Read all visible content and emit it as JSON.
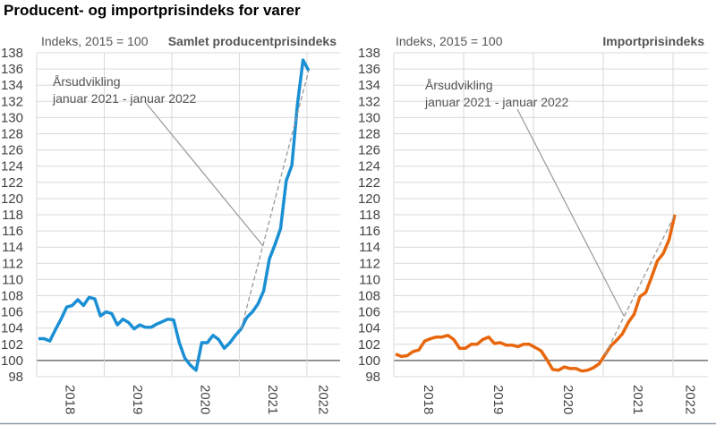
{
  "title": "Producent- og importprisindeks for varer",
  "chart_data": [
    {
      "type": "line",
      "title": "Samlet producentprisindeks",
      "ylabel": "Indeks, 2015 = 100",
      "ylim": [
        98,
        138
      ],
      "yticks": [
        98,
        100,
        102,
        104,
        106,
        108,
        110,
        112,
        114,
        116,
        118,
        120,
        122,
        124,
        126,
        128,
        130,
        132,
        134,
        136,
        138
      ],
      "x_tick_labels": [
        "2018",
        "2019",
        "2020",
        "2021",
        "2022"
      ],
      "x_range": [
        "2018-01",
        "2022-01"
      ],
      "frequency": "monthly",
      "grid": true,
      "color": "#1a8fd4",
      "annotation": {
        "line1": "Årsudvikling",
        "line2": "januar 2021 - januar 2022"
      },
      "values": [
        102.7,
        102.7,
        102.4,
        103.8,
        105.1,
        106.6,
        106.8,
        107.5,
        106.8,
        107.8,
        107.6,
        105.5,
        106.0,
        105.8,
        104.4,
        105.1,
        104.7,
        103.9,
        104.4,
        104.1,
        104.1,
        104.5,
        104.8,
        105.1,
        105.0,
        102.2,
        100.3,
        99.4,
        98.8,
        102.2,
        102.2,
        103.1,
        102.6,
        101.5,
        102.2,
        103.1,
        103.9,
        105.3,
        106.0,
        107.0,
        108.6,
        112.5,
        114.3,
        116.3,
        122.2,
        124.1,
        131.6,
        137.1,
        135.8
      ]
    },
    {
      "type": "line",
      "title": "Importprisindeks",
      "ylabel": "Indeks, 2015 = 100",
      "ylim": [
        98,
        138
      ],
      "yticks": [
        98,
        100,
        102,
        104,
        106,
        108,
        110,
        112,
        114,
        116,
        118,
        120,
        122,
        124,
        126,
        128,
        130,
        132,
        134,
        136,
        138
      ],
      "x_tick_labels": [
        "2018",
        "2019",
        "2020",
        "2021",
        "2022"
      ],
      "x_range": [
        "2018-01",
        "2022-01"
      ],
      "frequency": "monthly",
      "grid": true,
      "color": "#e8670c",
      "annotation": {
        "line1": "Årsudvikling",
        "line2": "januar 2021 - januar 2022"
      },
      "values": [
        100.8,
        100.5,
        100.6,
        101.1,
        101.3,
        102.4,
        102.7,
        102.9,
        102.9,
        103.1,
        102.6,
        101.5,
        101.5,
        102.0,
        102.0,
        102.6,
        102.9,
        102.1,
        102.2,
        101.9,
        101.9,
        101.7,
        102.0,
        102.0,
        101.6,
        101.2,
        100.1,
        98.9,
        98.8,
        99.2,
        99.0,
        99.0,
        98.7,
        98.8,
        99.1,
        99.6,
        100.7,
        101.8,
        102.5,
        103.3,
        104.7,
        105.7,
        107.9,
        108.4,
        110.3,
        112.3,
        113.2,
        114.9,
        118.0
      ]
    }
  ]
}
